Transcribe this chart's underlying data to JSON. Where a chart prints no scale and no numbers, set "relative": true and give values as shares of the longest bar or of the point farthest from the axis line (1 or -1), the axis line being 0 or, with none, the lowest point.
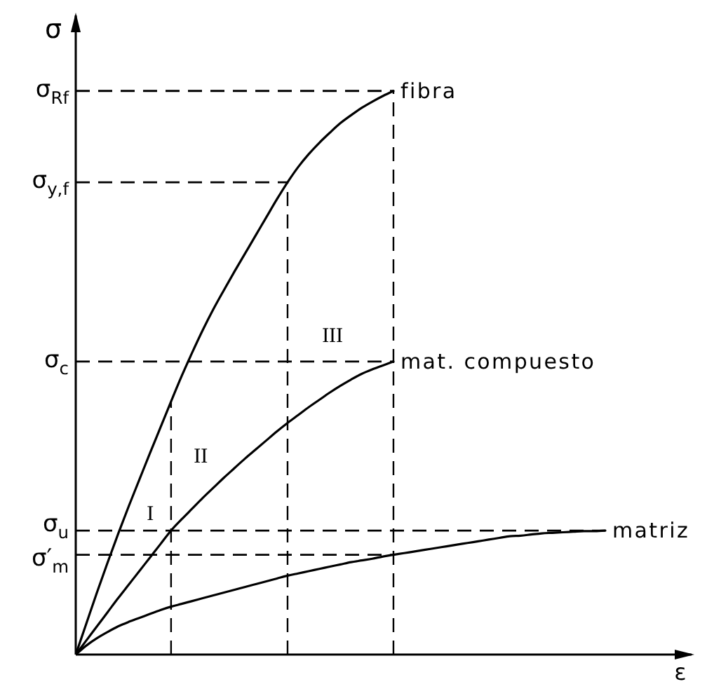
{
  "chart_data": {
    "type": "line",
    "relative": true,
    "xlabel": "ε",
    "ylabel": "σ",
    "categories": [
      null,
      null,
      null,
      null,
      null,
      null,
      null,
      null,
      null,
      null,
      null,
      null,
      null,
      null,
      null,
      null,
      null,
      null,
      null,
      null,
      null,
      null,
      null,
      null,
      null,
      null,
      null,
      null,
      null,
      null,
      null,
      null,
      null,
      null,
      null,
      null,
      null,
      null,
      null,
      null,
      null,
      null,
      null,
      null,
      null,
      null,
      null,
      null,
      null,
      null,
      null
    ],
    "series": [
      {
        "name": "fibra",
        "color": "#000000",
        "values": [
          0,
          0.055,
          0.11,
          0.163,
          0.214,
          0.263,
          0.31,
          0.357,
          0.403,
          0.449,
          0.494,
          0.536,
          0.576,
          0.613,
          0.647,
          0.68,
          0.712,
          0.744,
          0.776,
          0.808,
          0.838,
          0.865,
          0.888,
          0.908,
          0.926,
          0.943,
          0.957,
          0.97,
          0.981,
          0.991,
          1,
          null,
          null,
          null,
          null,
          null,
          null,
          null,
          null,
          null,
          null,
          null,
          null,
          null,
          null,
          null,
          null,
          null,
          null,
          null,
          null
        ]
      },
      {
        "name": "mat. compuesto",
        "color": "#000000",
        "values": [
          0,
          0.025,
          0.05,
          0.075,
          0.1,
          0.124,
          0.148,
          0.172,
          0.196,
          0.22,
          0.24,
          0.259,
          0.278,
          0.296,
          0.314,
          0.331,
          0.348,
          0.364,
          0.38,
          0.396,
          0.411,
          0.425,
          0.439,
          0.452,
          0.465,
          0.477,
          0.488,
          0.498,
          0.506,
          0.513,
          0.52,
          null,
          null,
          null,
          null,
          null,
          null,
          null,
          null,
          null,
          null,
          null,
          null,
          null,
          null,
          null,
          null,
          null,
          null,
          null,
          null
        ]
      },
      {
        "name": "matriz",
        "color": "#000000",
        "values": [
          0,
          0.016,
          0.029,
          0.04,
          0.05,
          0.058,
          0.065,
          0.072,
          0.079,
          0.085,
          0.09,
          0.095,
          0.1,
          0.105,
          0.11,
          0.115,
          0.12,
          0.125,
          0.13,
          0.135,
          0.14,
          0.144,
          0.148,
          0.152,
          0.156,
          0.16,
          0.164,
          0.167,
          0.17,
          0.174,
          0.177,
          0.18,
          0.183,
          0.186,
          0.189,
          0.192,
          0.195,
          0.198,
          0.201,
          0.204,
          0.207,
          0.21,
          0.211,
          0.213,
          0.215,
          0.216,
          0.217,
          0.218,
          0.219,
          0.219,
          0.22
        ]
      }
    ],
    "ref_lines": [
      {
        "axis": "y",
        "value": 1,
        "label": "σ$_{Rf}$",
        "color": "#000000",
        "line_style": "dashed"
      },
      {
        "axis": "y",
        "value": 0.838,
        "label": "σ$_{y,f}$",
        "color": "#000000",
        "line_style": "dashed"
      },
      {
        "axis": "y",
        "value": 0.52,
        "label": "σ$_{c}$",
        "color": "#000000",
        "line_style": "dashed"
      },
      {
        "axis": "y",
        "value": 0.22,
        "label": "σ$_{u}$",
        "color": "#000000",
        "line_style": "dashed"
      },
      {
        "axis": "y",
        "value": 0.177,
        "label": "σ′$_{m}$",
        "color": "#000000",
        "line_style": "dashed"
      }
    ],
    "annotations": [
      "I",
      "II",
      "III"
    ]
  }
}
